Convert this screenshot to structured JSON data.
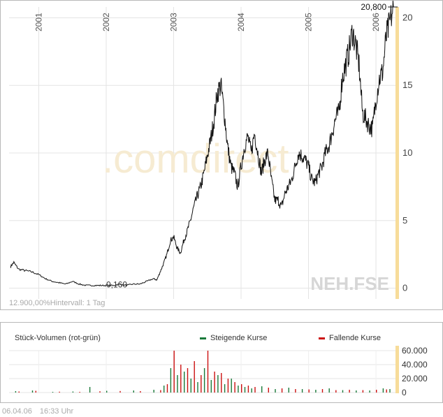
{
  "watermark": ".comdirect",
  "symbol": "NEH.FSE",
  "interval_info": "12.900,00%Hintervall: 1 Tag",
  "footer": {
    "date": "06.04.06",
    "time": "16:33 Uhr"
  },
  "colors": {
    "rising": "#1a7a3a",
    "falling": "#cc1111",
    "current_bar": "#f7dc9a",
    "price_line": "#111111"
  },
  "chart_data": [
    {
      "type": "line",
      "x_ticks": [
        "2001",
        "2002",
        "2003",
        "2004",
        "2005",
        "2006"
      ],
      "y_ticks": [
        "0",
        "5",
        "10",
        "15",
        "20"
      ],
      "ylim": [
        -0.8,
        20.8
      ],
      "xlim": [
        2000.56,
        2006.3
      ],
      "grid": true,
      "annotations": {
        "high": "20,800",
        "low": "0,160",
        "high_value": 20.8,
        "low_value": 0.16
      },
      "series": [
        {
          "x": [
            2000.58,
            2000.63,
            2000.7,
            2000.8,
            2000.9,
            2001.0,
            2001.1,
            2001.2,
            2001.3,
            2001.4,
            2001.5,
            2001.6,
            2001.7,
            2001.8,
            2001.9,
            2002.0,
            2002.1,
            2002.2,
            2002.3,
            2002.4,
            2002.5,
            2002.6,
            2002.7,
            2002.75,
            2002.8,
            2002.85,
            2002.9,
            2002.95,
            2003.0,
            2003.05,
            2003.1,
            2003.15,
            2003.2,
            2003.25,
            2003.3,
            2003.35,
            2003.4,
            2003.45,
            2003.5,
            2003.55,
            2003.6,
            2003.65,
            2003.7,
            2003.75,
            2003.8,
            2003.85,
            2003.9,
            2003.95,
            2004.0,
            2004.05,
            2004.1,
            2004.15,
            2004.2,
            2004.25,
            2004.3,
            2004.35,
            2004.4,
            2004.45,
            2004.5,
            2004.55,
            2004.6,
            2004.65,
            2004.7,
            2004.75,
            2004.8,
            2004.85,
            2004.9,
            2004.95,
            2005.0,
            2005.05,
            2005.1,
            2005.15,
            2005.2,
            2005.25,
            2005.3,
            2005.35,
            2005.4,
            2005.45,
            2005.5,
            2005.55,
            2005.6,
            2005.65,
            2005.7,
            2005.75,
            2005.8,
            2005.85,
            2005.9,
            2005.95,
            2006.0,
            2006.05,
            2006.1,
            2006.15,
            2006.2,
            2006.26
          ],
          "y": [
            1.6,
            1.9,
            1.4,
            1.3,
            1.2,
            1.0,
            0.7,
            0.5,
            0.4,
            0.3,
            0.5,
            0.3,
            0.2,
            0.2,
            0.2,
            0.2,
            0.2,
            0.3,
            0.2,
            0.3,
            0.3,
            0.5,
            0.7,
            0.6,
            1.2,
            1.8,
            2.5,
            3.5,
            3.8,
            3.0,
            2.6,
            3.5,
            4.2,
            5.0,
            6.0,
            6.8,
            7.5,
            8.5,
            9.8,
            11.0,
            12.5,
            14.5,
            15.0,
            13.0,
            10.5,
            9.0,
            8.5,
            7.5,
            9.0,
            10.5,
            11.2,
            10.0,
            11.5,
            10.0,
            8.5,
            9.5,
            10.0,
            8.0,
            6.5,
            6.5,
            6.0,
            7.0,
            7.5,
            8.0,
            9.0,
            10.0,
            9.8,
            9.5,
            9.0,
            8.0,
            7.8,
            8.5,
            9.0,
            10.0,
            10.5,
            11.5,
            12.5,
            13.0,
            15.5,
            16.5,
            17.5,
            19.0,
            18.0,
            16.5,
            13.0,
            12.5,
            12.0,
            11.8,
            14.0,
            15.5,
            16.0,
            18.5,
            19.5,
            20.8
          ]
        }
      ]
    },
    {
      "type": "bar",
      "title": "Stück-Volumen (rot-grün)",
      "legend": {
        "rising": "Steigende Kurse",
        "falling": "Fallende Kurse"
      },
      "y_ticks": [
        "0",
        "20.000",
        "40.000",
        "60.000"
      ],
      "ylim": [
        0,
        60000
      ],
      "xlim": [
        2000.56,
        2006.3
      ],
      "series": [
        {
          "name": "Steigende Kurse",
          "x": [
            2000.65,
            2000.9,
            2001.2,
            2001.5,
            2001.75,
            2002.0,
            2002.4,
            2002.7,
            2002.85,
            2002.95,
            2003.05,
            2003.15,
            2003.25,
            2003.35,
            2003.45,
            2003.55,
            2003.65,
            2003.75,
            2003.85,
            2003.95,
            2004.05,
            2004.15,
            2004.3,
            2004.5,
            2004.7,
            2004.9,
            2005.1,
            2005.3,
            2005.5,
            2005.7,
            2005.9,
            2006.1,
            2006.2
          ],
          "y": [
            2000,
            3000,
            1000,
            1500,
            8000,
            2500,
            3000,
            4000,
            10000,
            35000,
            25000,
            30000,
            20000,
            15000,
            35000,
            18000,
            25000,
            12000,
            20000,
            10000,
            8000,
            6000,
            9000,
            5000,
            7000,
            5000,
            4000,
            6000,
            3500,
            3000,
            3000,
            6000,
            5000
          ]
        },
        {
          "name": "Fallende Kurse",
          "x": [
            2000.7,
            2000.95,
            2001.3,
            2001.6,
            2001.9,
            2002.2,
            2002.5,
            2002.8,
            2002.9,
            2003.0,
            2003.1,
            2003.2,
            2003.3,
            2003.4,
            2003.5,
            2003.6,
            2003.7,
            2003.8,
            2003.9,
            2004.0,
            2004.1,
            2004.2,
            2004.4,
            2004.6,
            2004.8,
            2005.0,
            2005.2,
            2005.4,
            2005.6,
            2005.8,
            2006.0,
            2006.15
          ],
          "y": [
            1500,
            2500,
            1200,
            1000,
            1800,
            2200,
            2000,
            3500,
            12000,
            60000,
            40000,
            35000,
            45000,
            25000,
            60000,
            30000,
            28000,
            20000,
            15000,
            12000,
            10000,
            8000,
            7000,
            6000,
            5000,
            4500,
            5000,
            3500,
            4000,
            3500,
            4000,
            4500
          ]
        }
      ]
    }
  ]
}
